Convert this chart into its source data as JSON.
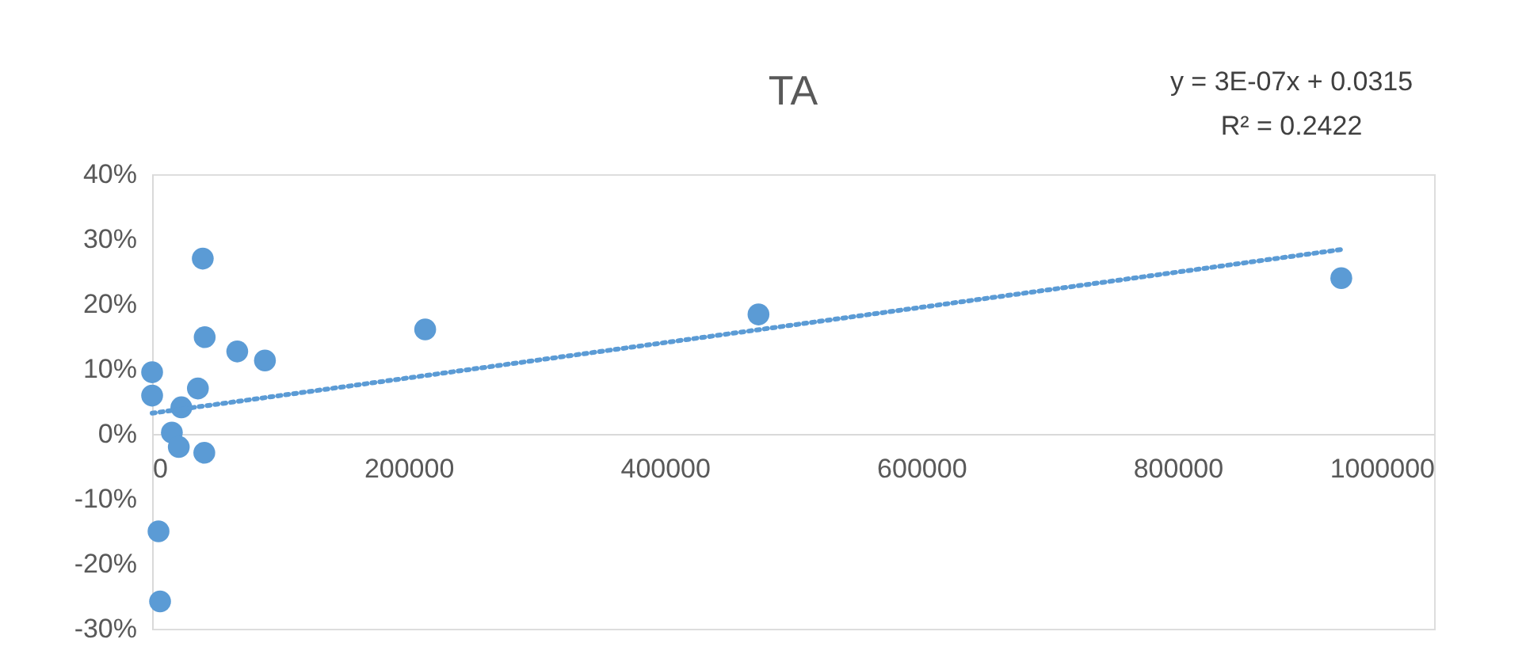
{
  "chart_data": {
    "type": "scatter",
    "title": "TA",
    "annotations": [
      "y = 3E-07x + 0.0315",
      "R² = 0.2422"
    ],
    "series": [
      {
        "type": "scatter",
        "color": "#5b9bd5",
        "marker": "circle",
        "x": [
          39500,
          41000,
          66400,
          88000,
          0,
          0,
          35700,
          22800,
          15400,
          20800,
          40700,
          5000,
          6200,
          213000,
          473000,
          927600
        ],
        "values": [
          27.0,
          14.9,
          12.7,
          11.3,
          9.5,
          5.9,
          7.0,
          4.1,
          0.2,
          -2.0,
          -2.9,
          -15.0,
          -25.8,
          16.1,
          18.4,
          24.0
        ]
      },
      {
        "type": "line",
        "color": "#5b9bd5",
        "line_style": "dotted",
        "x": [
          0,
          927600
        ],
        "values": [
          3.2,
          28.4
        ]
      }
    ],
    "xlim": [
      0,
      1000000
    ],
    "xticks": [
      0,
      200000,
      400000,
      600000,
      800000,
      1000000
    ],
    "ylim": [
      -30,
      40
    ],
    "yticks": [
      {
        "value": -30,
        "label": "-30%"
      },
      {
        "value": -20,
        "label": "-20%"
      },
      {
        "value": -10,
        "label": "-10%"
      },
      {
        "value": 0,
        "label": "0%"
      },
      {
        "value": 10,
        "label": "10%"
      },
      {
        "value": 20,
        "label": "20%"
      },
      {
        "value": 30,
        "label": "30%"
      },
      {
        "value": 40,
        "label": "40%"
      }
    ],
    "grid": false,
    "legend": false
  }
}
